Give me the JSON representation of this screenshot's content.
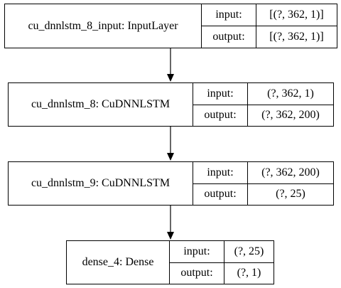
{
  "nodes": [
    {
      "name": "cu_dnnlstm_8_input: InputLayer",
      "input_label": "input:",
      "input": "[(?, 362, 1)]",
      "output_label": "output:",
      "output": "[(?, 362, 1)]"
    },
    {
      "name": "cu_dnnlstm_8: CuDNNLSTM",
      "input_label": "input:",
      "input": "(?, 362, 1)",
      "output_label": "output:",
      "output": "(?, 362, 200)"
    },
    {
      "name": "cu_dnnlstm_9: CuDNNLSTM",
      "input_label": "input:",
      "input": "(?, 362, 200)",
      "output_label": "output:",
      "output": "(?, 25)"
    },
    {
      "name": "dense_4: Dense",
      "input_label": "input:",
      "input": "(?, 25)",
      "output_label": "output:",
      "output": "(?, 1)"
    }
  ]
}
